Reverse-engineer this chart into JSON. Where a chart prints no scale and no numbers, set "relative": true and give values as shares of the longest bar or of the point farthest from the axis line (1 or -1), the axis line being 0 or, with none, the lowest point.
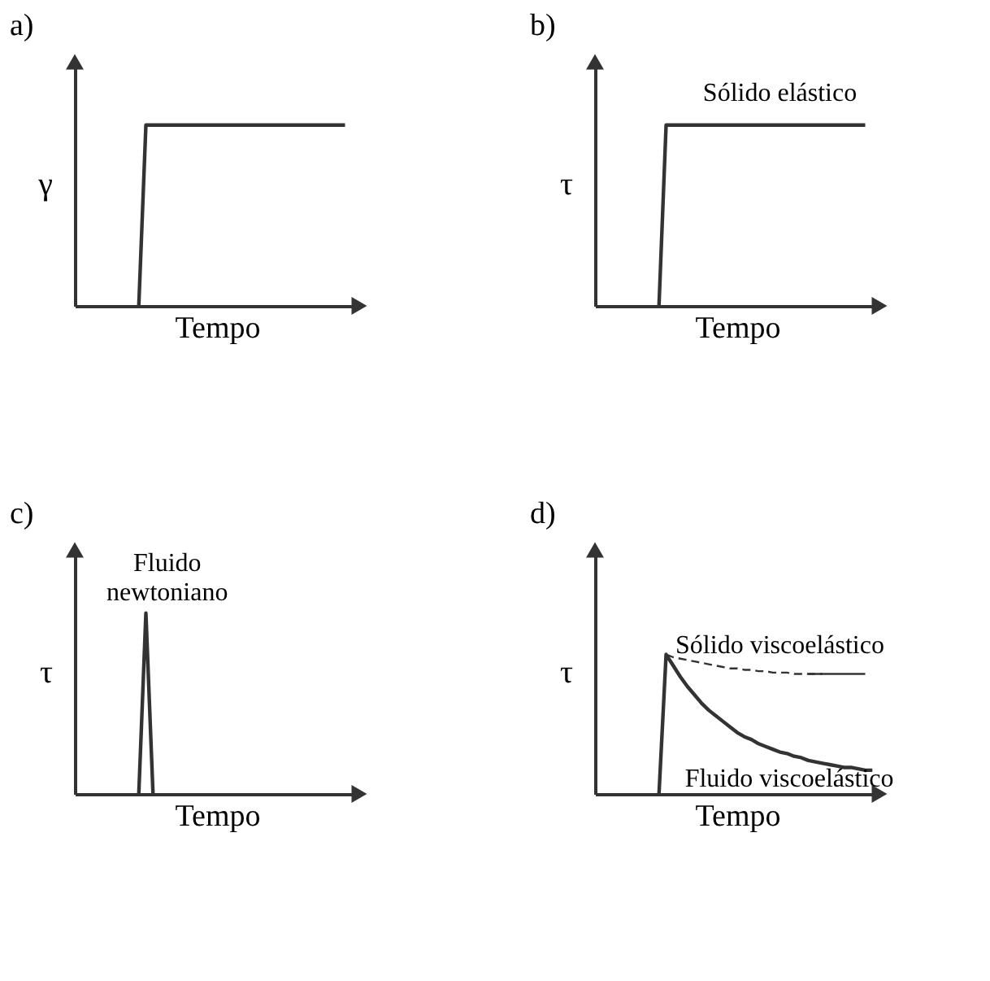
{
  "chart_data": [
    {
      "type": "line",
      "title": "a)",
      "xlabel": "Tempo",
      "ylabel": "γ",
      "relative": true,
      "categories": [
        null,
        null,
        null,
        null,
        null,
        null,
        null,
        null,
        null,
        null,
        null,
        null,
        null,
        null,
        null,
        null,
        null,
        null,
        null,
        null,
        null,
        null,
        null,
        null,
        null,
        null,
        null,
        null,
        null,
        null,
        null,
        null,
        null,
        null,
        null,
        null,
        null,
        null,
        null,
        null
      ],
      "series": [
        {
          "color": "#333333",
          "values": [
            null,
            null,
            null,
            null,
            null,
            null,
            null,
            null,
            null,
            0,
            1,
            1,
            1,
            1,
            1,
            1,
            1,
            1,
            1,
            1,
            1,
            1,
            1,
            1,
            1,
            1,
            1,
            1,
            1,
            1,
            1,
            1,
            1,
            1,
            1,
            1,
            1,
            1,
            1,
            null
          ]
        }
      ]
    },
    {
      "type": "line",
      "title": "b)",
      "xlabel": "Tempo",
      "ylabel": "τ",
      "relative": true,
      "annotations": [
        "Sólido elástico"
      ],
      "categories": [
        null,
        null,
        null,
        null,
        null,
        null,
        null,
        null,
        null,
        null,
        null,
        null,
        null,
        null,
        null,
        null,
        null,
        null,
        null,
        null,
        null,
        null,
        null,
        null,
        null,
        null,
        null,
        null,
        null,
        null,
        null,
        null,
        null,
        null,
        null,
        null,
        null,
        null,
        null,
        null
      ],
      "series": [
        {
          "color": "#333333",
          "values": [
            null,
            null,
            null,
            null,
            null,
            null,
            null,
            null,
            null,
            0,
            1,
            1,
            1,
            1,
            1,
            1,
            1,
            1,
            1,
            1,
            1,
            1,
            1,
            1,
            1,
            1,
            1,
            1,
            1,
            1,
            1,
            1,
            1,
            1,
            1,
            1,
            1,
            1,
            1,
            null
          ]
        }
      ]
    },
    {
      "type": "line",
      "title": "c)",
      "xlabel": "Tempo",
      "ylabel": "τ",
      "relative": true,
      "annotations": [
        "Fluido\nnewtoniano"
      ],
      "categories": [
        null,
        null,
        null,
        null,
        null,
        null,
        null,
        null,
        null,
        null,
        null,
        null,
        null,
        null,
        null,
        null,
        null,
        null,
        null,
        null,
        null,
        null,
        null,
        null,
        null,
        null,
        null,
        null,
        null,
        null,
        null,
        null,
        null,
        null,
        null,
        null,
        null,
        null,
        null,
        null
      ],
      "series": [
        {
          "color": "#333333",
          "values": [
            null,
            null,
            null,
            null,
            null,
            null,
            null,
            null,
            null,
            0,
            1,
            0,
            null,
            null,
            null,
            null,
            null,
            null,
            null,
            null,
            null,
            null,
            null,
            null,
            null,
            null,
            null,
            null,
            null,
            null,
            null,
            null,
            null,
            null,
            null,
            null,
            null,
            null,
            null,
            null
          ]
        }
      ]
    },
    {
      "type": "line",
      "title": "d)",
      "xlabel": "Tempo",
      "ylabel": "τ",
      "relative": true,
      "categories": [
        null,
        null,
        null,
        null,
        null,
        null,
        null,
        null,
        null,
        null,
        null,
        null,
        null,
        null,
        null,
        null,
        null,
        null,
        null,
        null,
        null,
        null,
        null,
        null,
        null,
        null,
        null,
        null,
        null,
        null,
        null,
        null,
        null,
        null,
        null,
        null,
        null,
        null,
        null,
        null
      ],
      "series": [
        {
          "name": "Sólido viscoelástico",
          "color": "#333333",
          "line_style": "dashed",
          "values": [
            null,
            null,
            null,
            null,
            null,
            null,
            null,
            null,
            null,
            null,
            1,
            0.98,
            0.97,
            0.96,
            0.95,
            0.94,
            0.93,
            0.92,
            0.91,
            0.9,
            0.9,
            0.89,
            0.89,
            0.88,
            0.88,
            0.87,
            0.87,
            0.87,
            0.86,
            0.86,
            0.86,
            0.86,
            0.86,
            null,
            null,
            null,
            null,
            null,
            null,
            null
          ]
        },
        {
          "name": "Fluido viscoelástico",
          "color": "#333333",
          "values": [
            null,
            null,
            null,
            null,
            null,
            null,
            null,
            null,
            null,
            0,
            1,
            0.92,
            0.84,
            0.77,
            0.71,
            0.65,
            0.6,
            0.56,
            0.52,
            0.48,
            0.44,
            0.41,
            0.39,
            0.36,
            0.34,
            0.32,
            0.3,
            0.29,
            0.27,
            0.26,
            0.24,
            0.23,
            0.22,
            0.21,
            0.2,
            0.19,
            0.19,
            0.18,
            0.17,
            0.17
          ]
        },
        {
          "color": "#333333",
          "values": [
            null,
            null,
            null,
            null,
            null,
            null,
            null,
            null,
            null,
            null,
            null,
            null,
            null,
            null,
            null,
            null,
            null,
            null,
            null,
            null,
            null,
            null,
            null,
            null,
            null,
            null,
            null,
            null,
            null,
            null,
            0.86,
            0.86,
            0.86,
            0.86,
            0.86,
            0.86,
            0.86,
            0.86,
            0.86,
            null
          ]
        }
      ]
    }
  ]
}
